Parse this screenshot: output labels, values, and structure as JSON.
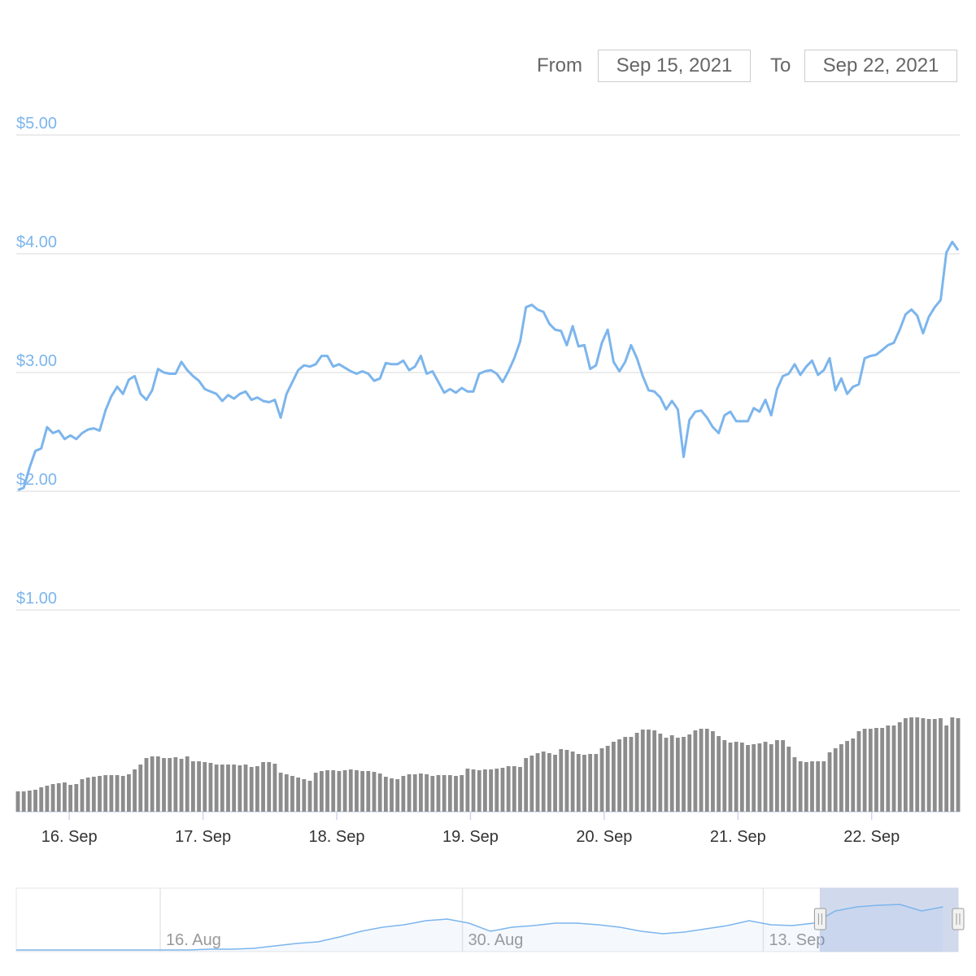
{
  "range_selector": {
    "from_label": "From",
    "from": "Sep 15, 2021",
    "to_label": "To",
    "to": "Sep 22, 2021"
  },
  "chart_data": [
    {
      "type": "line",
      "color": "#7cb5ec",
      "grid": true,
      "values": [
        2.01,
        2.03,
        2.2,
        2.34,
        2.36,
        2.54,
        2.49,
        2.51,
        2.44,
        2.47,
        2.44,
        2.49,
        2.52,
        2.53,
        2.51,
        2.68,
        2.8,
        2.88,
        2.82,
        2.94,
        2.97,
        2.82,
        2.77,
        2.85,
        3.03,
        3.0,
        2.99,
        2.99,
        3.09,
        3.02,
        2.97,
        2.93,
        2.86,
        2.84,
        2.82,
        2.76,
        2.81,
        2.78,
        2.82,
        2.84,
        2.77,
        2.79,
        2.76,
        2.75,
        2.77,
        2.62,
        2.82,
        2.92,
        3.02,
        3.06,
        3.05,
        3.07,
        3.14,
        3.14,
        3.05,
        3.07,
        3.04,
        3.01,
        2.99,
        3.01,
        2.99,
        2.93,
        2.95,
        3.08,
        3.07,
        3.07,
        3.1,
        3.02,
        3.05,
        3.14,
        2.99,
        3.01,
        2.92,
        2.83,
        2.86,
        2.83,
        2.87,
        2.84,
        2.84,
        2.99,
        3.01,
        3.02,
        2.99,
        2.92,
        3.01,
        3.12,
        3.26,
        3.55,
        3.57,
        3.53,
        3.51,
        3.41,
        3.36,
        3.35,
        3.23,
        3.39,
        3.22,
        3.23,
        3.03,
        3.06,
        3.25,
        3.36,
        3.09,
        3.01,
        3.09,
        3.23,
        3.12,
        2.97,
        2.85,
        2.84,
        2.79,
        2.69,
        2.76,
        2.69,
        2.29,
        2.6,
        2.67,
        2.68,
        2.62,
        2.54,
        2.49,
        2.64,
        2.67,
        2.59,
        2.59,
        2.59,
        2.7,
        2.67,
        2.77,
        2.64,
        2.86,
        2.97,
        2.99,
        3.07,
        2.98,
        3.05,
        3.1,
        2.98,
        3.02,
        3.12,
        2.85,
        2.95,
        2.82,
        2.88,
        2.9,
        3.12,
        3.14,
        3.15,
        3.19,
        3.23,
        3.25,
        3.36,
        3.49,
        3.53,
        3.48,
        3.33,
        3.47,
        3.55,
        3.61,
        4.01,
        4.1,
        4.03
      ],
      "ylim": [
        1,
        5
      ],
      "yticks": [
        {
          "value": 1,
          "label": "$1.00"
        },
        {
          "value": 2,
          "label": "$2.00"
        },
        {
          "value": 3,
          "label": "$3.00"
        },
        {
          "value": 4,
          "label": "$4.00"
        },
        {
          "value": 5,
          "label": "$5.00"
        }
      ],
      "xlim": [
        0,
        161
      ],
      "xticks": [
        {
          "value": 8.8,
          "label": "16. Sep"
        },
        {
          "value": 31.7,
          "label": "17. Sep"
        },
        {
          "value": 54.6,
          "label": "18. Sep"
        },
        {
          "value": 77.5,
          "label": "19. Sep"
        },
        {
          "value": 100.4,
          "label": "20. Sep"
        },
        {
          "value": 123.3,
          "label": "21. Sep"
        },
        {
          "value": 146.2,
          "label": "22. Sep"
        }
      ]
    },
    {
      "type": "bar",
      "color": "#8c8c8c",
      "ylim": [
        0,
        118
      ],
      "values": [
        25,
        25,
        26,
        27,
        30,
        32,
        34,
        35,
        36,
        33,
        34,
        40,
        42,
        43,
        44,
        45,
        45,
        45,
        44,
        46,
        52,
        58,
        66,
        68,
        68,
        66,
        66,
        67,
        65,
        68,
        62,
        62,
        61,
        60,
        58,
        58,
        58,
        58,
        57,
        58,
        55,
        56,
        61,
        61,
        59,
        48,
        46,
        44,
        42,
        40,
        38,
        48,
        50,
        51,
        51,
        50,
        51,
        52,
        51,
        50,
        50,
        49,
        47,
        43,
        41,
        40,
        44,
        46,
        46,
        47,
        46,
        44,
        45,
        45,
        45,
        44,
        45,
        53,
        52,
        51,
        52,
        52,
        53,
        54,
        56,
        56,
        55,
        66,
        69,
        72,
        74,
        72,
        70,
        77,
        76,
        74,
        71,
        70,
        71,
        71,
        78,
        81,
        86,
        89,
        92,
        92,
        97,
        101,
        101,
        100,
        96,
        91,
        94,
        91,
        92,
        95,
        100,
        102,
        102,
        99,
        93,
        88,
        85,
        86,
        85,
        82,
        83,
        84,
        86,
        83,
        88,
        88,
        80,
        67,
        62,
        61,
        62,
        62,
        62,
        73,
        78,
        83,
        87,
        90,
        99,
        102,
        102,
        103,
        103,
        106,
        106,
        110,
        115,
        116,
        116,
        115,
        114,
        114,
        115,
        106,
        116,
        115
      ]
    },
    {
      "type": "area",
      "color": "#7cb5ec",
      "ylim": [
        0,
        78
      ],
      "xlim": [
        0,
        43.7
      ],
      "values": [
        2,
        2,
        2,
        2,
        2,
        2,
        2,
        2,
        2,
        3,
        3,
        4,
        7,
        10,
        12,
        18,
        25,
        30,
        33,
        38,
        40,
        35,
        25,
        30,
        32,
        35,
        35,
        33,
        30,
        25,
        22,
        24,
        28,
        32,
        38,
        33,
        32,
        35,
        50,
        55,
        57,
        58,
        50,
        55
      ],
      "xticks": [
        {
          "value": 6.68,
          "label": "16. Aug"
        },
        {
          "value": 20.7,
          "label": "30. Aug"
        },
        {
          "value": 34.66,
          "label": "13. Sep"
        }
      ],
      "selection": [
        37.3,
        43.7
      ]
    }
  ]
}
